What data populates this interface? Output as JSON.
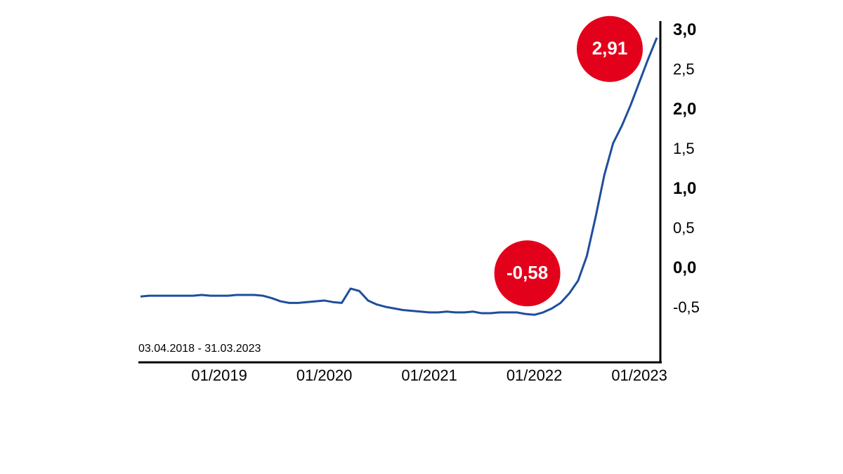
{
  "chart_data": {
    "type": "line",
    "subtitle": "03.04.2018 - 31.03.2023",
    "x": [
      "2018-04",
      "2018-05",
      "2018-06",
      "2018-07",
      "2018-08",
      "2018-09",
      "2018-10",
      "2018-11",
      "2018-12",
      "2019-01",
      "2019-02",
      "2019-03",
      "2019-04",
      "2019-05",
      "2019-06",
      "2019-07",
      "2019-08",
      "2019-09",
      "2019-10",
      "2019-11",
      "2019-12",
      "2020-01",
      "2020-02",
      "2020-03",
      "2020-04",
      "2020-05",
      "2020-06",
      "2020-07",
      "2020-08",
      "2020-09",
      "2020-10",
      "2020-11",
      "2020-12",
      "2021-01",
      "2021-02",
      "2021-03",
      "2021-04",
      "2021-05",
      "2021-06",
      "2021-07",
      "2021-08",
      "2021-09",
      "2021-10",
      "2021-11",
      "2021-12",
      "2022-01",
      "2022-02",
      "2022-03",
      "2022-04",
      "2022-05",
      "2022-06",
      "2022-07",
      "2022-08",
      "2022-09",
      "2022-10",
      "2022-11",
      "2022-12",
      "2023-01",
      "2023-02",
      "2023-03"
    ],
    "series": [
      {
        "color": "#1f4e9c",
        "values": [
          -0.35,
          -0.34,
          -0.34,
          -0.34,
          -0.34,
          -0.34,
          -0.34,
          -0.33,
          -0.34,
          -0.34,
          -0.34,
          -0.33,
          -0.33,
          -0.33,
          -0.34,
          -0.37,
          -0.41,
          -0.43,
          -0.43,
          -0.42,
          -0.41,
          -0.4,
          -0.42,
          -0.43,
          -0.25,
          -0.28,
          -0.4,
          -0.45,
          -0.48,
          -0.5,
          -0.52,
          -0.53,
          -0.54,
          -0.55,
          -0.55,
          -0.54,
          -0.55,
          -0.55,
          -0.54,
          -0.56,
          -0.56,
          -0.55,
          -0.55,
          -0.55,
          -0.57,
          -0.58,
          -0.55,
          -0.5,
          -0.43,
          -0.31,
          -0.15,
          0.16,
          0.65,
          1.18,
          1.58,
          1.8,
          2.06,
          2.35,
          2.64,
          2.91
        ]
      }
    ],
    "xlim": [
      "2018-04",
      "2023-03"
    ],
    "xticks": [
      {
        "value": "2019-01",
        "label": "01/2019"
      },
      {
        "value": "2020-01",
        "label": "01/2020"
      },
      {
        "value": "2021-01",
        "label": "01/2021"
      },
      {
        "value": "2022-01",
        "label": "01/2022"
      },
      {
        "value": "2023-01",
        "label": "01/2023"
      }
    ],
    "ylim": [
      -1.17,
      3.12
    ],
    "yticks": [
      {
        "value": 3,
        "label": "3,0"
      },
      {
        "value": 2.5,
        "label": "2,5"
      },
      {
        "value": 2,
        "label": "2,0"
      },
      {
        "value": 1.5,
        "label": "1,5"
      },
      {
        "value": 1,
        "label": "1,0"
      },
      {
        "value": 0.5,
        "label": "0,5"
      },
      {
        "value": 0,
        "label": "0,0"
      },
      {
        "value": -0.5,
        "label": "-0,5"
      }
    ],
    "annotations": [
      {
        "x": "2023-03",
        "value": 2.91,
        "label": "2,91",
        "color": "#e3001b"
      },
      {
        "x": "2022-01",
        "value": -0.58,
        "label": "-0,58",
        "color": "#e3001b"
      }
    ]
  }
}
